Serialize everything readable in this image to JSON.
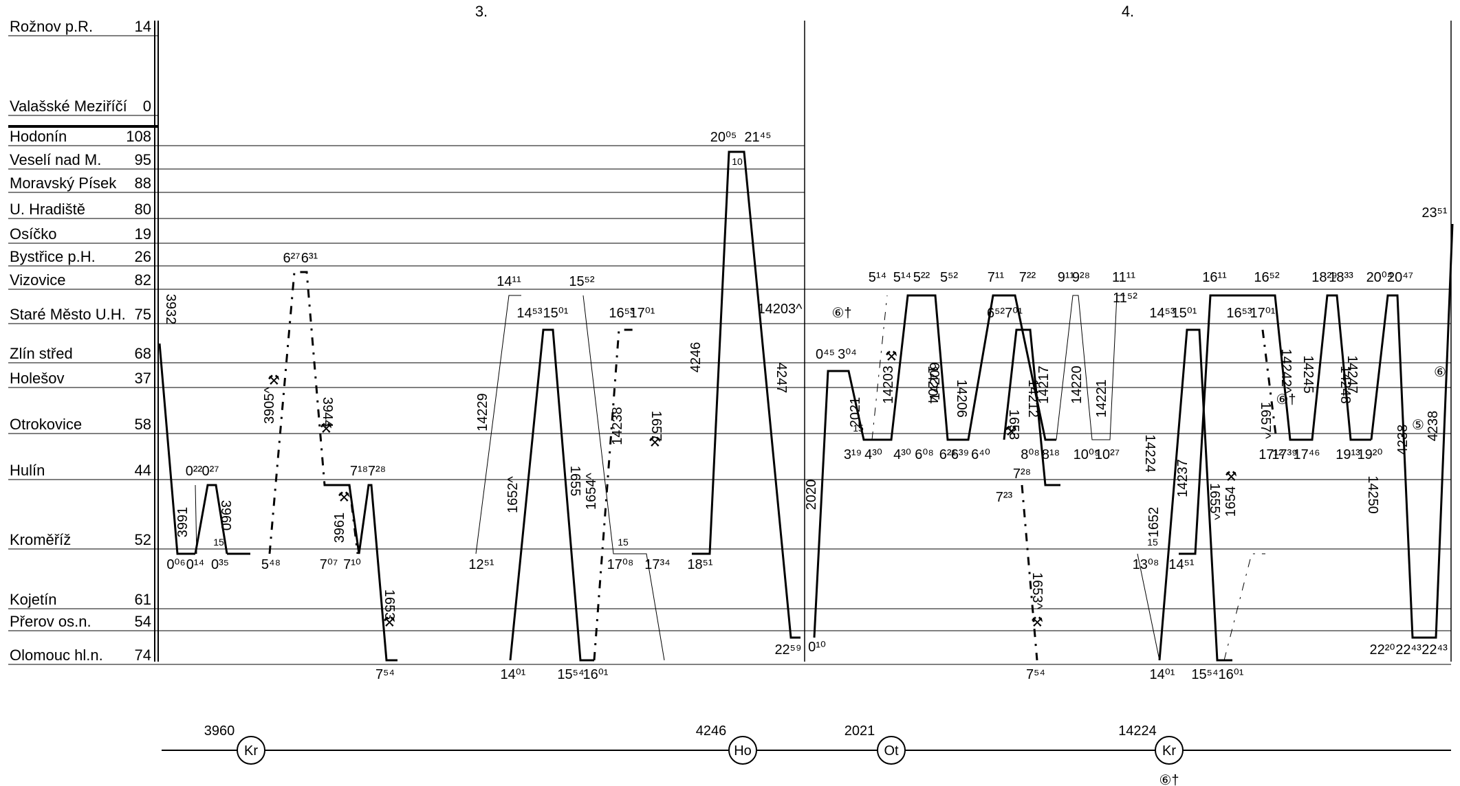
{
  "days": [
    {
      "label": "3.",
      "key": "day3"
    },
    {
      "label": "4.",
      "key": "day4"
    }
  ],
  "stations": [
    {
      "name": "Rožnov p.R.",
      "km": "14"
    },
    {
      "name": "Valašské Meziříčí",
      "km": "0"
    },
    {
      "name": "Hodonín",
      "km": "108"
    },
    {
      "name": "Veselí nad M.",
      "km": "95"
    },
    {
      "name": "Moravský Písek",
      "km": "88"
    },
    {
      "name": "U. Hradiště",
      "km": "80"
    },
    {
      "name": "Osíčko",
      "km": "19"
    },
    {
      "name": "Bystřice p.H.",
      "km": "26"
    },
    {
      "name": "Vizovice",
      "km": "82"
    },
    {
      "name": "Staré Město U.H.",
      "km": "75"
    },
    {
      "name": "Zlín střed",
      "km": "68"
    },
    {
      "name": "Holešov",
      "km": "37"
    },
    {
      "name": "Otrokovice",
      "km": "58"
    },
    {
      "name": "Hulín",
      "km": "44"
    },
    {
      "name": "Kroměříž",
      "km": "52"
    },
    {
      "name": "Kojetín",
      "km": "61"
    },
    {
      "name": "Přerov os.n.",
      "km": "54"
    },
    {
      "name": "Olomouc hl.n.",
      "km": "74"
    }
  ],
  "trains": [
    {
      "num": "3932",
      "style": "solid"
    },
    {
      "num": "3991",
      "style": "thin"
    },
    {
      "num": "3960",
      "style": "solid"
    },
    {
      "num": "3905^",
      "style": "dashdot"
    },
    {
      "num": "3944",
      "style": "solid"
    },
    {
      "num": "3961",
      "style": "solid"
    },
    {
      "num": "1653",
      "style": "solid"
    },
    {
      "num": "14229",
      "style": "thin"
    },
    {
      "num": "1652^",
      "style": "dashdot"
    },
    {
      "num": "1655",
      "style": "solid"
    },
    {
      "num": "1654^",
      "style": "dashdot"
    },
    {
      "num": "14238",
      "style": "dashdot"
    },
    {
      "num": "1657",
      "style": "solid"
    },
    {
      "num": "4246",
      "style": "solid"
    },
    {
      "num": "4247",
      "style": "solid"
    },
    {
      "num": "2020",
      "style": "solid"
    },
    {
      "num": "2021",
      "style": "solid"
    },
    {
      "num": "14203^",
      "style": "dashdot"
    },
    {
      "num": "14203",
      "style": "solid"
    },
    {
      "num": "14204",
      "style": "solid"
    },
    {
      "num": "14209",
      "style": "solid"
    },
    {
      "num": "14206",
      "style": "solid"
    },
    {
      "num": "14212",
      "style": "thin"
    },
    {
      "num": "1653",
      "style": "solid"
    },
    {
      "num": "1653^",
      "style": "dashdot"
    },
    {
      "num": "14217",
      "style": "thin"
    },
    {
      "num": "14220",
      "style": "thin"
    },
    {
      "num": "14221",
      "style": "thin"
    },
    {
      "num": "14224",
      "style": "thin"
    },
    {
      "num": "1652",
      "style": "solid"
    },
    {
      "num": "14237",
      "style": "solid"
    },
    {
      "num": "1655^",
      "style": "dashdot"
    },
    {
      "num": "1654",
      "style": "solid"
    },
    {
      "num": "1657^",
      "style": "dashdot"
    },
    {
      "num": "14242^",
      "style": "dashdot"
    },
    {
      "num": "14245",
      "style": "solid"
    },
    {
      "num": "14247",
      "style": "solid"
    },
    {
      "num": "14248",
      "style": "solid"
    },
    {
      "num": "14250",
      "style": "solid"
    },
    {
      "num": "4238",
      "style": "solid"
    },
    {
      "num": "4238",
      "style": "solid"
    }
  ],
  "times": [
    "0⁰⁶",
    "0¹⁴",
    "0²²",
    "0²⁷",
    "0³⁵",
    "5⁴⁸",
    "6²⁷",
    "6³¹",
    "7⁰⁷",
    "7¹⁰",
    "7¹⁸",
    "7²⁸",
    "7⁵⁴",
    "12⁵¹",
    "14¹¹",
    "14⁵³",
    "15⁰¹",
    "14⁰¹",
    "15⁵²",
    "16⁵³",
    "17⁰¹",
    "15⁵⁴",
    "16⁰¹",
    "17⁰⁸",
    "17³⁴",
    "18⁵¹",
    "20⁰⁵",
    "21⁴⁵",
    "22⁵⁹",
    "0¹⁰",
    "0⁴⁵",
    "3⁰⁴",
    "3¹⁹",
    "4³⁰",
    "4³⁰",
    "5¹⁴",
    "5¹⁴",
    "5²²",
    "5⁵²",
    "6⁰⁸",
    "6²¹",
    "6³⁹",
    "6⁴⁰",
    "6⁵²",
    "7⁰¹",
    "7¹¹",
    "7²²",
    "7²³",
    "7²⁸",
    "8⁰⁸",
    "8¹⁸",
    "7⁵⁴",
    "9¹¹",
    "9²⁸",
    "10⁰⁹",
    "10²⁷",
    "11¹¹",
    "11⁵²",
    "13⁰⁸",
    "14⁵³",
    "15⁰¹",
    "14⁵¹",
    "14⁰¹",
    "15⁵⁴",
    "16⁰¹",
    "16¹¹",
    "16⁵²",
    "16⁵³",
    "17⁰¹",
    "17¹²",
    "17³⁹",
    "17⁴⁶",
    "18²⁹",
    "18³³",
    "19¹³",
    "19²⁰",
    "20⁰⁴",
    "20⁴⁷",
    "23⁵¹",
    "22²⁰",
    "22⁴³",
    "22⁴³"
  ],
  "dwell_marks": [
    "15",
    "10",
    "15",
    "15",
    "15"
  ],
  "symbols": {
    "sunday_holiday": "⑥†",
    "weekdays": "⚒",
    "mark_5": "⑤",
    "mark_6": "⑥"
  },
  "bottom_summary": [
    {
      "train": "3960",
      "depot": "Kr"
    },
    {
      "train": "4246",
      "depot": "Ho"
    },
    {
      "train": "2021",
      "depot": "Ot"
    },
    {
      "train": "14224",
      "depot": "Kr",
      "note": "⑥†"
    }
  ]
}
